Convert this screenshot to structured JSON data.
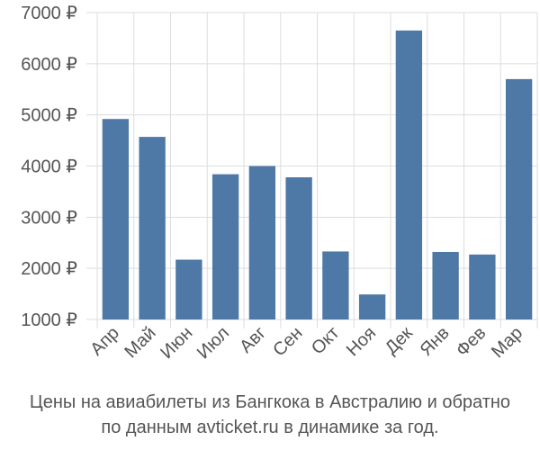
{
  "chart_data": {
    "type": "bar",
    "categories": [
      "Апр",
      "Май",
      "Июн",
      "Июл",
      "Авг",
      "Сен",
      "Окт",
      "Ноя",
      "Дек",
      "Янв",
      "Фев",
      "Мар"
    ],
    "values": [
      4920,
      4570,
      2170,
      3840,
      4000,
      3780,
      2330,
      1490,
      6650,
      2320,
      2270,
      5700
    ],
    "ylim": [
      1000,
      7000
    ],
    "y_ticks": [
      {
        "value": 1000,
        "label": "1000 ₽"
      },
      {
        "value": 2000,
        "label": "2000 ₽"
      },
      {
        "value": 3000,
        "label": "3000 ₽"
      },
      {
        "value": 4000,
        "label": "4000 ₽"
      },
      {
        "value": 5000,
        "label": "5000 ₽"
      },
      {
        "value": 6000,
        "label": "6000 ₽"
      },
      {
        "value": 7000,
        "label": "7000 ₽"
      }
    ],
    "grid": true,
    "bar_color": "#4e79a7",
    "caption_line1": "Цены на авиабилеты из Бангкока в Австралию и обратно",
    "caption_line2": "по данным avticket.ru в динамике за год."
  }
}
